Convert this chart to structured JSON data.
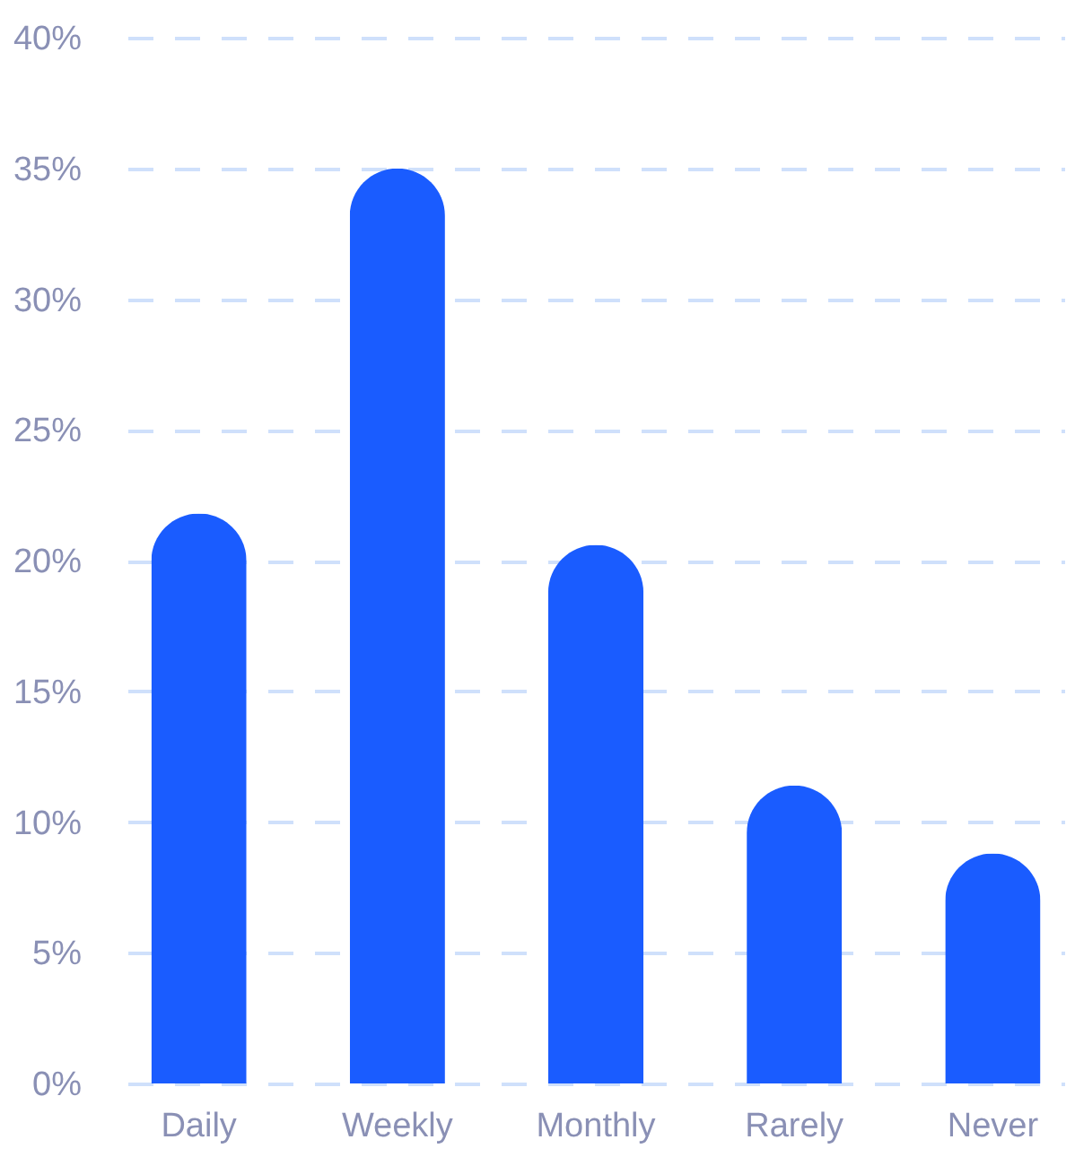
{
  "chart_data": {
    "type": "bar",
    "categories": [
      "Daily",
      "Weekly",
      "Monthly",
      "Rarely",
      "Never"
    ],
    "values": [
      21.8,
      35,
      20.6,
      11.4,
      8.8
    ],
    "color": "#1a5cff",
    "ylim": [
      0,
      40
    ],
    "yticks": [
      {
        "value": 0,
        "label": "0%"
      },
      {
        "value": 5,
        "label": "5%"
      },
      {
        "value": 10,
        "label": "10%"
      },
      {
        "value": 15,
        "label": "15%"
      },
      {
        "value": 20,
        "label": "20%"
      },
      {
        "value": 25,
        "label": "25%"
      },
      {
        "value": 30,
        "label": "30%"
      },
      {
        "value": 35,
        "label": "35%"
      },
      {
        "value": 40,
        "label": "40%"
      }
    ],
    "grid": "y"
  }
}
